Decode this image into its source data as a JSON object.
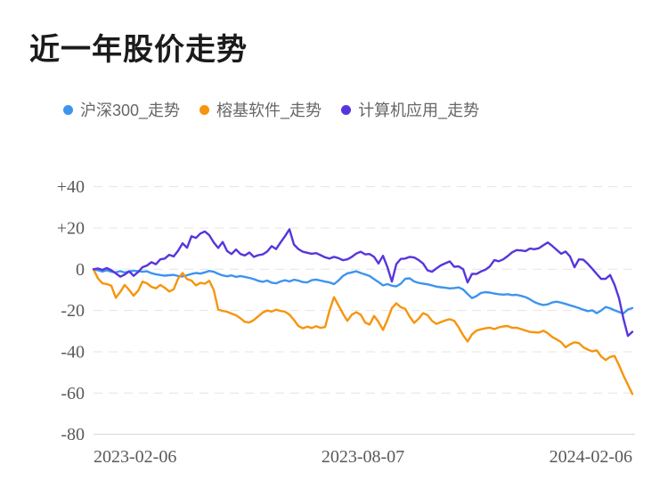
{
  "chart_data": {
    "type": "line",
    "title": "近一年股价走势",
    "x_tick_labels": [
      "2023-02-06",
      "2023-08-07",
      "2024-02-06"
    ],
    "x_range": [
      "2023-02-06",
      "2024-02-06"
    ],
    "x_spacing": "uniform daily samples across range",
    "y_tick_labels": [
      "+40",
      "+20",
      "0",
      "-20",
      "-40",
      "-60",
      "-80"
    ],
    "y_ticks": [
      40,
      20,
      0,
      -20,
      -40,
      -60,
      -80
    ],
    "ylim": [
      -80,
      40
    ],
    "y_unit": "percent change",
    "grid": "horizontal dashed",
    "legend_position": "top-left",
    "series": [
      {
        "name": "沪深300_走势",
        "color": "#3d94ee",
        "values": [
          0,
          -0.5,
          -1.1,
          -0.5,
          -1.2,
          -1.5,
          -0.9,
          -1.6,
          -1.1,
          -0.7,
          -0.9,
          -1.2,
          -1.0,
          -1.9,
          -2.4,
          -2.8,
          -3.1,
          -2.9,
          -2.7,
          -3.3,
          -3.5,
          -2.9,
          -2.3,
          -1.8,
          -2.1,
          -1.5,
          -0.8,
          -1.2,
          -2.2,
          -3.0,
          -3.4,
          -3.0,
          -3.7,
          -3.3,
          -3.7,
          -4.2,
          -4.8,
          -5.6,
          -6.1,
          -5.5,
          -6.5,
          -6.8,
          -5.9,
          -5.3,
          -5.9,
          -5.1,
          -5.5,
          -6.2,
          -6.4,
          -5.3,
          -5.0,
          -5.5,
          -6.0,
          -6.4,
          -7.2,
          -5.5,
          -3.3,
          -2.0,
          -1.5,
          -1.0,
          -1.8,
          -2.5,
          -3.3,
          -4.8,
          -6.2,
          -7.8,
          -7.2,
          -8.0,
          -8.3,
          -7.0,
          -4.6,
          -4.4,
          -5.9,
          -6.6,
          -7.0,
          -7.3,
          -7.8,
          -8.4,
          -8.7,
          -9.0,
          -9.3,
          -9.1,
          -8.8,
          -9.8,
          -12.0,
          -14.0,
          -13.0,
          -11.5,
          -11.1,
          -11.3,
          -11.8,
          -12.1,
          -12.3,
          -12.1,
          -12.5,
          -12.4,
          -12.9,
          -13.5,
          -14.6,
          -15.9,
          -16.8,
          -17.3,
          -17.0,
          -16.1,
          -15.7,
          -16.2,
          -16.8,
          -17.5,
          -18.1,
          -18.8,
          -19.6,
          -20.3,
          -19.9,
          -21.3,
          -20.0,
          -18.3,
          -18.9,
          -19.9,
          -20.7,
          -21.4,
          -19.5,
          -18.8
        ]
      },
      {
        "name": "榕基软件_走势",
        "color": "#f7940e",
        "values": [
          0,
          -4.5,
          -6.8,
          -7.2,
          -8.0,
          -13.8,
          -11.0,
          -7.6,
          -10.0,
          -12.8,
          -10.5,
          -6.0,
          -6.8,
          -8.5,
          -9.3,
          -7.6,
          -9.0,
          -10.8,
          -9.7,
          -4.5,
          -1.8,
          -4.8,
          -5.5,
          -7.8,
          -6.6,
          -7.0,
          -5.6,
          -10.0,
          -19.5,
          -20.2,
          -20.6,
          -21.5,
          -22.3,
          -23.8,
          -25.5,
          -25.8,
          -24.6,
          -22.8,
          -21.0,
          -20.0,
          -20.5,
          -19.6,
          -20.2,
          -20.6,
          -22.0,
          -24.5,
          -27.5,
          -28.6,
          -27.8,
          -28.5,
          -27.6,
          -28.4,
          -28.0,
          -20.0,
          -13.5,
          -17.5,
          -21.5,
          -25.0,
          -22.0,
          -20.8,
          -22.0,
          -25.8,
          -26.8,
          -22.6,
          -25.5,
          -29.4,
          -24.5,
          -18.8,
          -16.5,
          -18.4,
          -19.2,
          -23.0,
          -26.0,
          -24.0,
          -21.3,
          -22.2,
          -25.0,
          -26.5,
          -25.6,
          -24.8,
          -24.2,
          -25.0,
          -28.2,
          -32.0,
          -35.0,
          -31.5,
          -29.7,
          -29.1,
          -28.6,
          -28.3,
          -29.0,
          -28.2,
          -27.7,
          -27.5,
          -28.4,
          -28.3,
          -29.0,
          -29.7,
          -30.4,
          -30.5,
          -30.7,
          -29.8,
          -31.0,
          -32.8,
          -34.0,
          -35.3,
          -37.8,
          -36.4,
          -35.4,
          -35.8,
          -37.8,
          -39.0,
          -39.8,
          -39.3,
          -42.3,
          -44.0,
          -42.5,
          -42.0,
          -46.5,
          -51.5,
          -56.0,
          -60.5
        ]
      },
      {
        "name": "计算机应用_走势",
        "color": "#5735dc",
        "values": [
          0,
          0.4,
          -0.3,
          0.6,
          -0.5,
          -2.0,
          -3.6,
          -2.6,
          -1.0,
          -3.2,
          -1.4,
          1.0,
          1.8,
          3.4,
          2.4,
          4.8,
          5.2,
          7.0,
          6.2,
          9.0,
          12.6,
          10.4,
          16.0,
          15.2,
          17.3,
          18.3,
          16.5,
          13.0,
          10.3,
          13.2,
          8.8,
          7.4,
          9.6,
          7.4,
          6.7,
          8.1,
          6.0,
          6.8,
          7.2,
          8.6,
          11.2,
          9.8,
          13.0,
          16.0,
          19.4,
          12.0,
          9.8,
          8.5,
          8.0,
          7.5,
          7.8,
          6.8,
          5.8,
          5.2,
          6.0,
          5.4,
          4.4,
          4.8,
          6.0,
          7.6,
          8.5,
          7.2,
          7.4,
          6.0,
          2.8,
          6.5,
          1.0,
          -6.0,
          2.5,
          5.0,
          5.2,
          6.0,
          5.7,
          4.5,
          2.8,
          -0.5,
          -1.2,
          0.4,
          1.9,
          2.9,
          3.8,
          1.2,
          1.4,
          0.0,
          -6.4,
          -2.2,
          -2.3,
          -1.1,
          -0.2,
          1.4,
          4.4,
          3.9,
          4.8,
          6.4,
          8.2,
          9.3,
          9.1,
          8.8,
          10.0,
          9.7,
          10.2,
          11.6,
          13.0,
          11.3,
          9.4,
          7.5,
          8.6,
          6.2,
          1.0,
          4.8,
          4.6,
          2.6,
          0.2,
          -2.3,
          -4.7,
          -4.6,
          -2.8,
          -7.5,
          -14.0,
          -24.0,
          -32.3,
          -30.3
        ]
      }
    ]
  },
  "colors": {
    "background": "#ffffff",
    "title_text": "#1b1b1b",
    "legend_text": "#666666",
    "axis_text": "#595959",
    "gridline": "#e4e4e4",
    "axis_line": "#d4d4d4",
    "series_blue": "#3d94ee",
    "series_orange": "#f7940e",
    "series_purple": "#5735dc"
  }
}
